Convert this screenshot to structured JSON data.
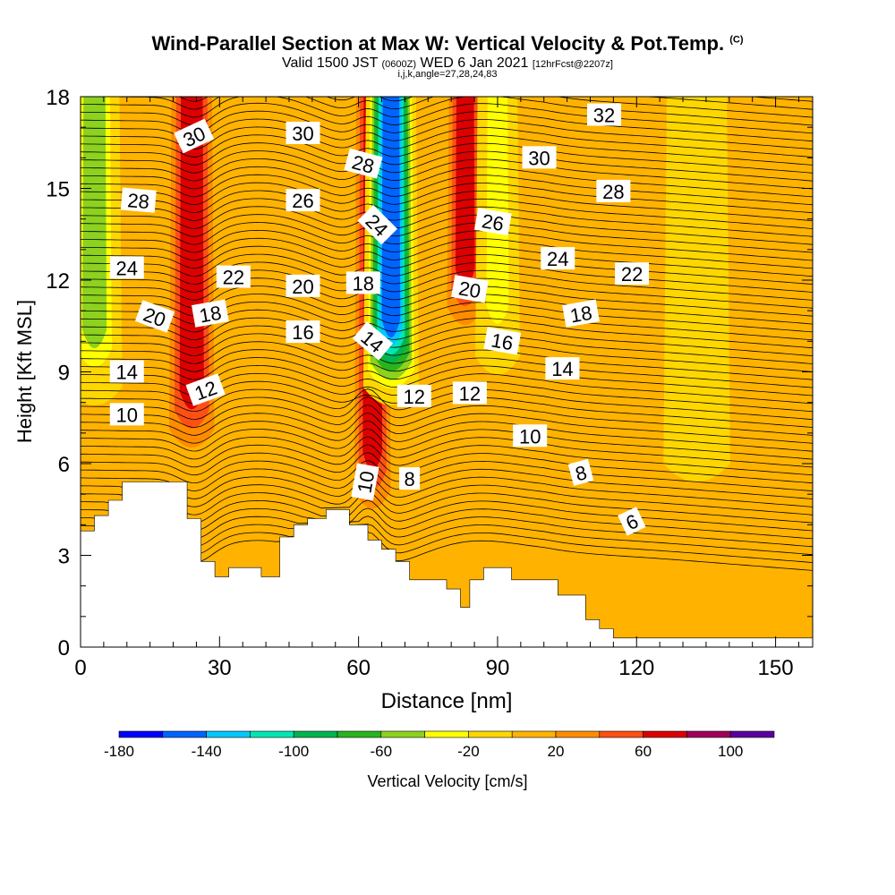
{
  "title": {
    "main": "Wind-Parallel Section at Max W: Vertical Velocity & Pot.Temp.",
    "mark": "(C)",
    "valid_prefix": "Valid 1500 JST",
    "valid_zulu": "(0600Z)",
    "valid_date": "WED 6 Jan 2021",
    "forecast": "[12hrFcst@2207z]",
    "indices": "i,j,k,angle=27,28,24,83"
  },
  "colors": {
    "terrain": "#ffffff",
    "background_fill": "#ffb300",
    "contour_line": "#000000",
    "label_box": "#ffffff"
  },
  "chart_data": {
    "type": "heatmap",
    "xlabel": "Distance [nm]",
    "ylabel": "Height [Kft MSL]",
    "xlim": [
      0,
      158
    ],
    "ylim": [
      0,
      18
    ],
    "xticks": [
      0,
      30,
      60,
      90,
      120,
      150
    ],
    "yticks": [
      0,
      3,
      6,
      9,
      12,
      15,
      18
    ],
    "colorbar": {
      "label": "Vertical Velocity [cm/s]",
      "tick_labels": [
        -180,
        -140,
        -100,
        -60,
        -20,
        20,
        60,
        100
      ],
      "bins": [
        -180,
        -160,
        -140,
        -120,
        -100,
        -80,
        -60,
        -40,
        -20,
        0,
        20,
        40,
        60,
        80,
        100,
        120
      ],
      "colors": [
        "#0000ff",
        "#0064ff",
        "#00c8ff",
        "#00e6b4",
        "#00b450",
        "#28b41e",
        "#8cd21e",
        "#ffff00",
        "#ffd700",
        "#ffb300",
        "#ff8c00",
        "#ff5014",
        "#dc0000",
        "#a0005a",
        "#5a00a0"
      ]
    },
    "terrain": [
      [
        0,
        3.8
      ],
      [
        3,
        3.8
      ],
      [
        3,
        4.3
      ],
      [
        6,
        4.3
      ],
      [
        6,
        4.8
      ],
      [
        9,
        4.8
      ],
      [
        9,
        5.4
      ],
      [
        23,
        5.4
      ],
      [
        23,
        4.2
      ],
      [
        26,
        4.2
      ],
      [
        26,
        2.8
      ],
      [
        29,
        2.8
      ],
      [
        29,
        2.3
      ],
      [
        32,
        2.3
      ],
      [
        32,
        2.6
      ],
      [
        39,
        2.6
      ],
      [
        39,
        2.3
      ],
      [
        43,
        2.3
      ],
      [
        43,
        3.6
      ],
      [
        46,
        3.6
      ],
      [
        46,
        4.0
      ],
      [
        49,
        4.0
      ],
      [
        49,
        4.2
      ],
      [
        53,
        4.2
      ],
      [
        53,
        4.5
      ],
      [
        58,
        4.5
      ],
      [
        58,
        4.0
      ],
      [
        62,
        4.0
      ],
      [
        62,
        3.5
      ],
      [
        65,
        3.5
      ],
      [
        65,
        3.2
      ],
      [
        68,
        3.2
      ],
      [
        68,
        2.8
      ],
      [
        71,
        2.8
      ],
      [
        71,
        2.2
      ],
      [
        79,
        2.2
      ],
      [
        79,
        1.9
      ],
      [
        82,
        1.9
      ],
      [
        82,
        1.3
      ],
      [
        84,
        1.3
      ],
      [
        84,
        2.2
      ],
      [
        87,
        2.2
      ],
      [
        87,
        2.6
      ],
      [
        93,
        2.6
      ],
      [
        93,
        2.2
      ],
      [
        103,
        2.2
      ],
      [
        103,
        1.7
      ],
      [
        109,
        1.7
      ],
      [
        109,
        0.9
      ],
      [
        112,
        0.9
      ],
      [
        112,
        0.6
      ],
      [
        115,
        0.6
      ],
      [
        115,
        0.3
      ],
      [
        158,
        0.3
      ]
    ],
    "velocity_bands": [
      {
        "x": 3,
        "width": 5,
        "z_bottom": 8.5,
        "w": -70
      },
      {
        "x": 24,
        "width": 5,
        "z_bottom": 6.5,
        "w": 70
      },
      {
        "x": 63,
        "width": 4,
        "z_bottom": 4.5,
        "w": 70
      },
      {
        "x": 67,
        "width": 5,
        "z_bottom": 8.5,
        "w": -160
      },
      {
        "x": 83,
        "width": 4,
        "z_bottom": 10.5,
        "w": 60
      },
      {
        "x": 90,
        "width": 4,
        "z_bottom": 9.5,
        "w": -50
      },
      {
        "x": 133,
        "width": 6,
        "z_bottom": 6.0,
        "w": -10
      }
    ],
    "theta_labels": [
      {
        "text": "32",
        "x": 113,
        "z": 17.4,
        "angle": 0
      },
      {
        "text": "30",
        "x": 24.5,
        "z": 16.7,
        "angle": -25
      },
      {
        "text": "30",
        "x": 48,
        "z": 16.8,
        "angle": 0
      },
      {
        "text": "30",
        "x": 99,
        "z": 16.0,
        "angle": 0
      },
      {
        "text": "28",
        "x": 61,
        "z": 15.8,
        "angle": 15
      },
      {
        "text": "28",
        "x": 12.5,
        "z": 14.6,
        "angle": 5
      },
      {
        "text": "28",
        "x": 115,
        "z": 14.9,
        "angle": 0
      },
      {
        "text": "26",
        "x": 48,
        "z": 14.6,
        "angle": 0
      },
      {
        "text": "26",
        "x": 89,
        "z": 13.9,
        "angle": 10
      },
      {
        "text": "24",
        "x": 64,
        "z": 13.8,
        "angle": 45
      },
      {
        "text": "24",
        "x": 10,
        "z": 12.4,
        "angle": 0
      },
      {
        "text": "24",
        "x": 103,
        "z": 12.7,
        "angle": 0
      },
      {
        "text": "22",
        "x": 33,
        "z": 12.1,
        "angle": 0
      },
      {
        "text": "22",
        "x": 119,
        "z": 12.2,
        "angle": 0
      },
      {
        "text": "20",
        "x": 48,
        "z": 11.8,
        "angle": 0
      },
      {
        "text": "20",
        "x": 16,
        "z": 10.8,
        "angle": 20
      },
      {
        "text": "20",
        "x": 84,
        "z": 11.7,
        "angle": 10
      },
      {
        "text": "18",
        "x": 61,
        "z": 11.9,
        "angle": 0
      },
      {
        "text": "18",
        "x": 28,
        "z": 10.9,
        "angle": -10
      },
      {
        "text": "18",
        "x": 108,
        "z": 10.9,
        "angle": -10
      },
      {
        "text": "16",
        "x": 48,
        "z": 10.3,
        "angle": 0
      },
      {
        "text": "16",
        "x": 91,
        "z": 10.0,
        "angle": 10
      },
      {
        "text": "14",
        "x": 63,
        "z": 10.0,
        "angle": 40
      },
      {
        "text": "14",
        "x": 10,
        "z": 9.0,
        "angle": 0
      },
      {
        "text": "14",
        "x": 104,
        "z": 9.1,
        "angle": 0
      },
      {
        "text": "12",
        "x": 27,
        "z": 8.4,
        "angle": -20
      },
      {
        "text": "12",
        "x": 72,
        "z": 8.2,
        "angle": 0
      },
      {
        "text": "12",
        "x": 84,
        "z": 8.3,
        "angle": 0
      },
      {
        "text": "10",
        "x": 10,
        "z": 7.6,
        "angle": 0
      },
      {
        "text": "10",
        "x": 97,
        "z": 6.9,
        "angle": 0
      },
      {
        "text": "10",
        "x": 61.5,
        "z": 5.4,
        "angle": -80
      },
      {
        "text": "8",
        "x": 71,
        "z": 5.5,
        "angle": 0
      },
      {
        "text": "8",
        "x": 108,
        "z": 5.7,
        "angle": -15
      },
      {
        "text": "6",
        "x": 119,
        "z": 4.1,
        "angle": -25
      }
    ]
  }
}
